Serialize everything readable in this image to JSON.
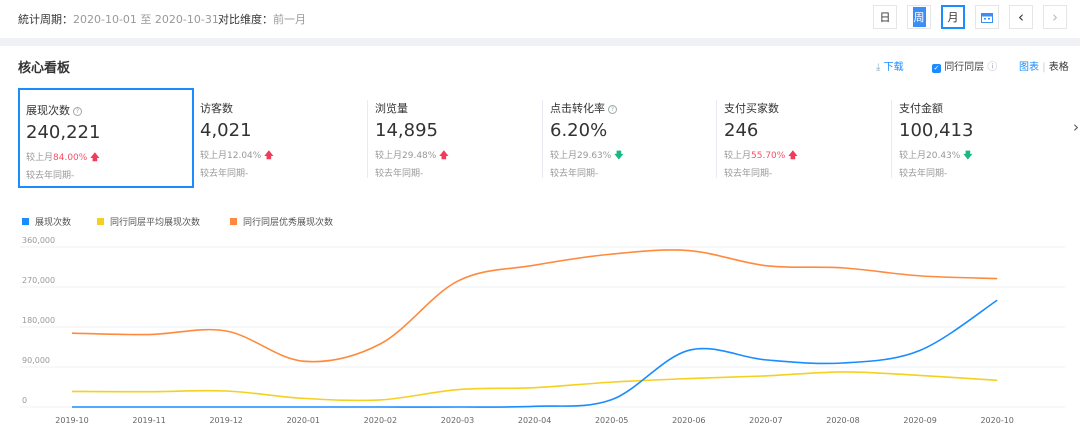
{
  "topbar": {
    "period_label": "統计周期：",
    "period_value": "2020-10-01 至 2020-10-31",
    "compare_label": "对比维度：",
    "compare_value": "前一月",
    "buttons": {
      "day": "日",
      "week": "周",
      "month": "月",
      "prev": "‹",
      "next": "›"
    }
  },
  "section": {
    "title": "核心看板",
    "download": "下载",
    "peer_label": "同行同层",
    "view_chart": "图表",
    "view_sep": "|",
    "view_table": "表格",
    "next_arrow": "›"
  },
  "kpis": [
    {
      "name": "展现次数",
      "value": "240,221",
      "mom_label": "较上月",
      "mom": "84.00%",
      "dir": "up",
      "mom_red": true,
      "yoy": "较去年同期-",
      "help": true
    },
    {
      "name": "访客数",
      "value": "4,021",
      "mom_label": "较上月",
      "mom": "12.04%",
      "dir": "up",
      "mom_red": false,
      "yoy": "较去年同期-",
      "help": false
    },
    {
      "name": "浏览量",
      "value": "14,895",
      "mom_label": "较上月",
      "mom": "29.48%",
      "dir": "up",
      "mom_red": false,
      "yoy": "较去年同期-",
      "help": false
    },
    {
      "name": "点击转化率",
      "value": "6.20%",
      "mom_label": "较上月",
      "mom": "29.63%",
      "dir": "down",
      "mom_red": false,
      "yoy": "较去年同期-",
      "help": true
    },
    {
      "name": "支付买家数",
      "value": "246",
      "mom_label": "较上月",
      "mom": "55.70%",
      "dir": "up",
      "mom_red": true,
      "yoy": "较去年同期-",
      "help": false
    },
    {
      "name": "支付金额",
      "value": "100,413",
      "mom_label": "较上月",
      "mom": "20.43%",
      "dir": "down",
      "mom_red": false,
      "yoy": "较去年同期-",
      "help": false
    }
  ],
  "chart_data": {
    "type": "line",
    "x": [
      "2019-10",
      "2019-11",
      "2019-12",
      "2020-01",
      "2020-02",
      "2020-03",
      "2020-04",
      "2020-05",
      "2020-06",
      "2020-07",
      "2020-08",
      "2020-09",
      "2020-10"
    ],
    "ylim": [
      0,
      360000
    ],
    "yticks": [
      0,
      90000,
      180000,
      270000,
      360000
    ],
    "ytick_labels": [
      "0",
      "90,000",
      "180,000",
      "270,000",
      "360,000"
    ],
    "grid": true,
    "legend": "top-left",
    "series": [
      {
        "name": "展现次数",
        "color": "#1a8cff",
        "values": [
          0,
          0,
          0,
          0,
          0,
          0,
          1500,
          16500,
          127500,
          106000,
          99000,
          127500,
          240221
        ]
      },
      {
        "name": "同行同层平均展现次数",
        "color": "#f5d020",
        "values": [
          35000,
          34500,
          36000,
          19500,
          16000,
          39000,
          43500,
          56000,
          64000,
          70000,
          79000,
          71000,
          60000
        ]
      },
      {
        "name": "同行同层优秀展现次数",
        "color": "#ff8a3d",
        "values": [
          166000,
          163000,
          171000,
          103000,
          142000,
          283000,
          319000,
          344000,
          352000,
          318000,
          313000,
          295000,
          289000
        ]
      }
    ]
  }
}
